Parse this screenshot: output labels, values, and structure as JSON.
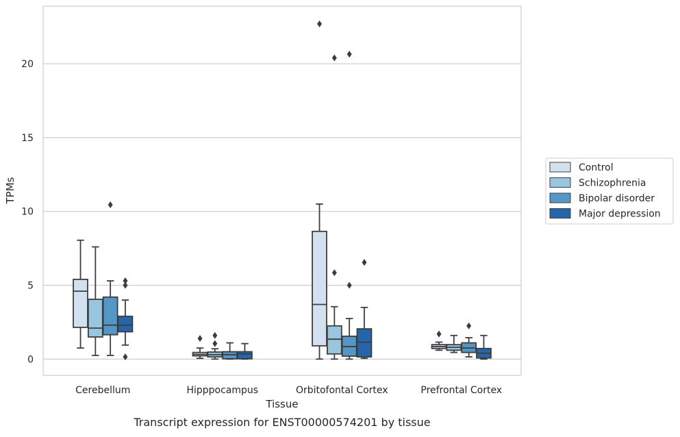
{
  "chart_data": {
    "type": "box",
    "xlabel": "Tissue",
    "ylabel": "TPMs",
    "caption": "Transcript expression for ENST00000574201 by tissue",
    "ylim": [
      -1.1,
      23.9
    ],
    "yticks": [
      0,
      5,
      10,
      15,
      20
    ],
    "grid": "horizontal",
    "legend_placement": "right",
    "categories": [
      "Cerebellum",
      "Hipppocampus",
      "Orbitofontal Cortex",
      "Prefrontal Cortex"
    ],
    "series": [
      {
        "name": "Control",
        "color": "#d1e1f0",
        "boxes": [
          {
            "whislo": 0.75,
            "q1": 2.15,
            "med": 4.6,
            "q3": 5.4,
            "whishi": 8.05,
            "fliers": []
          },
          {
            "whislo": 0.05,
            "q1": 0.22,
            "med": 0.32,
            "q3": 0.45,
            "whishi": 0.75,
            "fliers": [
              1.4
            ]
          },
          {
            "whislo": 0.0,
            "q1": 0.9,
            "med": 3.7,
            "q3": 8.65,
            "whishi": 10.5,
            "fliers": [
              22.7
            ]
          },
          {
            "whislo": 0.6,
            "q1": 0.72,
            "med": 0.85,
            "q3": 0.98,
            "whishi": 1.15,
            "fliers": [
              1.7
            ]
          }
        ]
      },
      {
        "name": "Schizophrenia",
        "color": "#9ac5de",
        "boxes": [
          {
            "whislo": 0.25,
            "q1": 1.5,
            "med": 2.1,
            "q3": 4.05,
            "whishi": 7.6,
            "fliers": []
          },
          {
            "whislo": 0.0,
            "q1": 0.15,
            "med": 0.3,
            "q3": 0.48,
            "whishi": 0.7,
            "fliers": [
              1.05,
              1.6
            ]
          },
          {
            "whislo": 0.0,
            "q1": 0.35,
            "med": 1.35,
            "q3": 2.25,
            "whishi": 3.55,
            "fliers": [
              5.85,
              20.4
            ]
          },
          {
            "whislo": 0.45,
            "q1": 0.6,
            "med": 0.8,
            "q3": 0.98,
            "whishi": 1.6,
            "fliers": []
          }
        ]
      },
      {
        "name": "Bipolar disorder",
        "color": "#5497c6",
        "boxes": [
          {
            "whislo": 0.25,
            "q1": 1.65,
            "med": 2.3,
            "q3": 4.2,
            "whishi": 5.3,
            "fliers": [
              10.45
            ]
          },
          {
            "whislo": 0.0,
            "q1": 0.02,
            "med": 0.3,
            "q3": 0.5,
            "whishi": 1.1,
            "fliers": []
          },
          {
            "whislo": 0.0,
            "q1": 0.2,
            "med": 0.85,
            "q3": 1.55,
            "whishi": 2.75,
            "fliers": [
              5.0,
              20.65
            ]
          },
          {
            "whislo": 0.15,
            "q1": 0.45,
            "med": 0.75,
            "q3": 1.1,
            "whishi": 1.45,
            "fliers": [
              2.25
            ]
          }
        ]
      },
      {
        "name": "Major depression",
        "color": "#2466a9",
        "boxes": [
          {
            "whislo": 0.95,
            "q1": 1.85,
            "med": 2.3,
            "q3": 2.9,
            "whishi": 4.0,
            "fliers": [
              0.15,
              5.0,
              5.3
            ]
          },
          {
            "whislo": 0.0,
            "q1": 0.02,
            "med": 0.35,
            "q3": 0.5,
            "whishi": 1.05,
            "fliers": []
          },
          {
            "whislo": 0.05,
            "q1": 0.15,
            "med": 1.15,
            "q3": 2.05,
            "whishi": 3.5,
            "fliers": [
              6.55
            ]
          },
          {
            "whislo": 0.0,
            "q1": 0.08,
            "med": 0.4,
            "q3": 0.72,
            "whishi": 1.6,
            "fliers": []
          }
        ]
      }
    ]
  }
}
